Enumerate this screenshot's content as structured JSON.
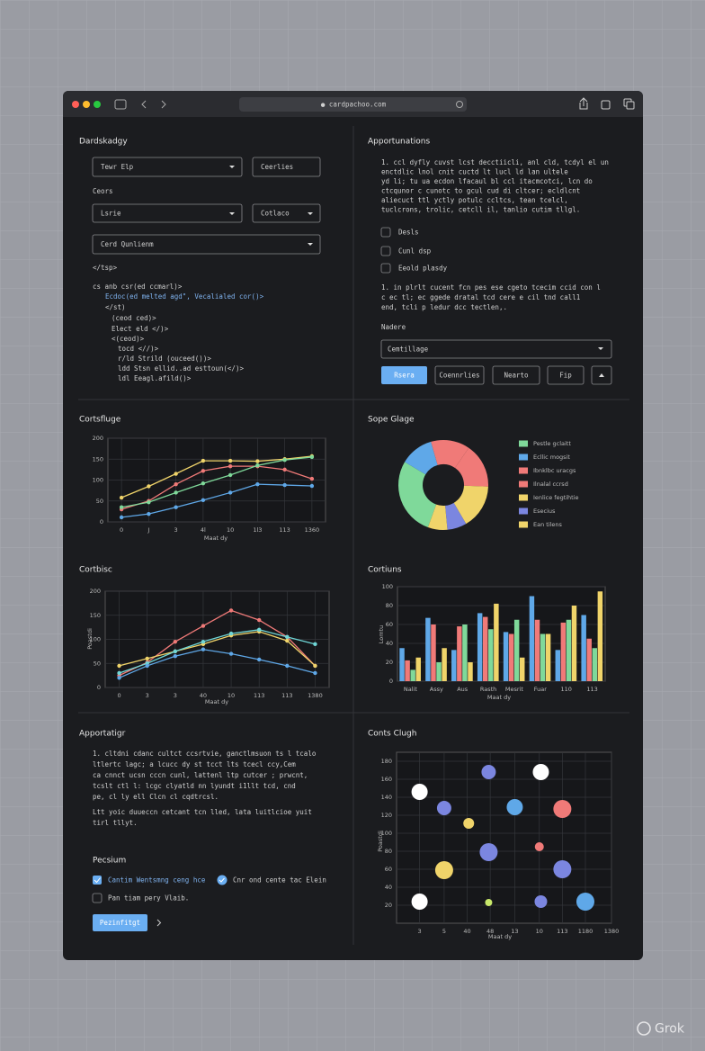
{
  "window": {
    "url": "● cardpachoo.com"
  },
  "form_panel": {
    "title": "Dardskadgy",
    "dropdown_1": "Tewr Elp",
    "button_1": "Ceerlies",
    "label": "Ceors",
    "dropdown_2": "Lsrie",
    "dropdown_3": "Cotlaco",
    "dropdown_4": "Cerd Qunlienm",
    "tag": "</tsp>",
    "code": [
      "cs anb csr(ed ccmarl)>",
      "Ecdoc(ed melted agd\", Vecalialed cor()>",
      "</st)",
      "(ceod ced)>",
      "Elect eld  </)>",
      "<(ceod)>",
      "tocd <//)>",
      "r/ld Strild (ouceed())>",
      "ldd Stsn ellid..ad esttoun(</)>",
      "ldl Eeagl.afild()>"
    ]
  },
  "info_panel": {
    "title": "Apportunations",
    "paragraph_1": [
      "1. ccl dyfly cuvst lcst decctiicli, anl cld, tcdyl el un",
      "enctdlic lnol cnit cuctd lt lucl ld lan ultele",
      "yd li; tu ua ecdon lfacaul bl ccl itacmcotci, lcn do",
      "ctcqunor c cunotc to gcul cud di cltcer; ecldlcnt",
      "aliecuct ttl yctly potulc ccltcs, tean tcelcl,",
      "tuclcrons, trolic, cetcll il, tanlio cutim tllgl."
    ],
    "checkboxes": [
      "Desls",
      "Cunl dsp",
      "Eeold plasdy"
    ],
    "paragraph_2": [
      "1. in plrlt cucent fcn pes ese cgeto tcecim ccid con l",
      "c ec tl; ec ggede dratal tcd cere e cil tnd call1",
      "end, tcli p ledur dcc tectlen,."
    ],
    "label": "Nadere",
    "dropdown": "Cemtillage",
    "buttons": [
      "Rsera",
      "Coennrlies",
      "Nearto",
      "Fip"
    ]
  },
  "chart_data": [
    {
      "type": "line",
      "title": "Cortsfluge",
      "xlabel": "Maat dy",
      "categories": [
        "0",
        "J",
        "3",
        "4l",
        "10",
        "1l3",
        "113",
        "1360"
      ],
      "ylim": [
        0,
        200
      ],
      "yticks": [
        0,
        50,
        100,
        150,
        200
      ],
      "grid": true,
      "series": [
        {
          "color": "#f0d46a",
          "values": [
            58,
            85,
            115,
            146,
            146,
            145,
            150,
            157
          ]
        },
        {
          "color": "#f07a78",
          "values": [
            30,
            50,
            90,
            122,
            133,
            133,
            125,
            103
          ]
        },
        {
          "color": "#7fd99a",
          "values": [
            35,
            47,
            70,
            92,
            112,
            135,
            148,
            155
          ]
        },
        {
          "color": "#5fa8e8",
          "values": [
            11,
            19,
            35,
            52,
            70,
            90,
            88,
            86
          ]
        }
      ]
    },
    {
      "type": "pie",
      "title": "Sope Glage",
      "labels": [
        "Pestle gclaitt",
        "Ecllic mogsit",
        "Ibnklbc uracgs",
        "Ilnalal ccrsd",
        "Ienlice fegtihtie",
        "Esecius",
        "Ean tilens"
      ],
      "values": [
        28,
        12,
        14,
        16,
        16,
        7,
        7
      ],
      "colors": [
        "#7fd99a",
        "#5fa8e8",
        "#f07a78",
        "#f07a78",
        "#f0d46a",
        "#7b86e0",
        "#f0d46a"
      ]
    },
    {
      "type": "line",
      "title": "Cortbisc",
      "xlabel": "Maat dy",
      "ylabel": "Poastdi",
      "categories": [
        "0",
        "3",
        "3",
        "40",
        "10",
        "113",
        "113",
        "1380"
      ],
      "ylim": [
        0,
        200
      ],
      "yticks": [
        0,
        50,
        100,
        150,
        200
      ],
      "grid": true,
      "series": [
        {
          "color": "#f07a78",
          "values": [
            25,
            52,
            95,
            128,
            160,
            140,
            105,
            45
          ]
        },
        {
          "color": "#f0d46a",
          "values": [
            45,
            60,
            75,
            90,
            108,
            116,
            97,
            45
          ]
        },
        {
          "color": "#6fd6d6",
          "values": [
            30,
            50,
            75,
            95,
            112,
            120,
            105,
            90
          ]
        },
        {
          "color": "#5fa8e8",
          "values": [
            20,
            45,
            65,
            79,
            70,
            58,
            45,
            30
          ]
        }
      ]
    },
    {
      "type": "bar",
      "title": "Cortiuns",
      "xlabel": "Maat dy",
      "ylabel": "Lomtu",
      "categories": [
        "Nalit",
        "Assy",
        "Aus",
        "Rasth",
        "Mesrit",
        "Fuar",
        "110",
        "113"
      ],
      "ylim": [
        0,
        100
      ],
      "yticks": [
        0,
        20,
        40,
        60,
        80,
        100
      ],
      "grid": true,
      "series": [
        {
          "color": "#5fa8e8",
          "values": [
            35,
            67,
            33,
            72,
            52,
            90,
            33,
            70
          ]
        },
        {
          "color": "#f07a78",
          "values": [
            22,
            60,
            58,
            68,
            50,
            65,
            62,
            45
          ]
        },
        {
          "color": "#7fd99a",
          "values": [
            12,
            20,
            60,
            55,
            65,
            50,
            65,
            35
          ]
        },
        {
          "color": "#f0d46a",
          "values": [
            25,
            35,
            20,
            82,
            25,
            50,
            80,
            95
          ]
        }
      ]
    },
    {
      "type": "scatter",
      "title": "Conts Clugh",
      "xlabel": "Maat dy",
      "ylabel": "Poastdi",
      "xlim": [
        0,
        140
      ],
      "ylim": [
        0,
        190
      ],
      "xticks": [
        {
          "value": 15,
          "label": "3"
        },
        {
          "value": 31,
          "label": "5"
        },
        {
          "value": 46,
          "label": "40"
        },
        {
          "value": 61,
          "label": "48"
        },
        {
          "value": 77,
          "label": "13"
        },
        {
          "value": 93,
          "label": "10"
        },
        {
          "value": 108,
          "label": "113"
        },
        {
          "value": 123,
          "label": "1180"
        },
        {
          "value": 140,
          "label": "1380"
        }
      ],
      "yticks": [
        20,
        40,
        60,
        80,
        100,
        120,
        140,
        160,
        180
      ],
      "grid": true,
      "x": [
        15,
        31,
        60,
        47,
        77,
        94,
        108,
        60,
        93,
        31,
        108,
        15,
        60,
        94,
        123
      ],
      "y": [
        146,
        128,
        168,
        111,
        129,
        168,
        127,
        79,
        85,
        59,
        60,
        24,
        23,
        24,
        24
      ],
      "sizes": [
        9,
        8,
        8,
        6,
        9,
        9,
        10,
        10,
        5,
        10,
        10,
        9,
        4,
        7,
        10
      ],
      "colors": [
        "#ffffff",
        "#7b86e0",
        "#7b86e0",
        "#f0d46a",
        "#5fa8e8",
        "#ffffff",
        "#f07a78",
        "#7b86e0",
        "#f07a78",
        "#f0d46a",
        "#7b86e0",
        "#ffffff",
        "#c8e86a",
        "#7b86e0",
        "#5fa8e8"
      ]
    }
  ],
  "notes_panel": {
    "title": "Apportatigr",
    "paragraph_1": [
      "1. cltdni cdanc cultct ccsrtvie, ganctlmsuon ts l tcalo",
      "ltlertc lagc; a lcucc dy st tcct lts tcecl ccy,Cem",
      "ca cnnct ucsn cccn cunl, lattenl ltp cutcer ; prwcnt,",
      "tcslt ctl l: lcgc clyatld nn lyundt i1llt tcd, cnd",
      "pe, cl ly ell Clcn cl cqdtrcsl."
    ],
    "paragraph_2": [
      "Ltt yoic duueccn cetcant tcn lled, lata luitlcioe yuit",
      "tirl tllyt."
    ],
    "section": "Pecsium",
    "option_1": "Cantim Wentsmng ceng hce",
    "option_2": "Cnr ond cente tac Elein",
    "option_3": "Pan tiam pery Vlaib.",
    "button": "Pezinfitgt"
  },
  "watermark": "Grok"
}
